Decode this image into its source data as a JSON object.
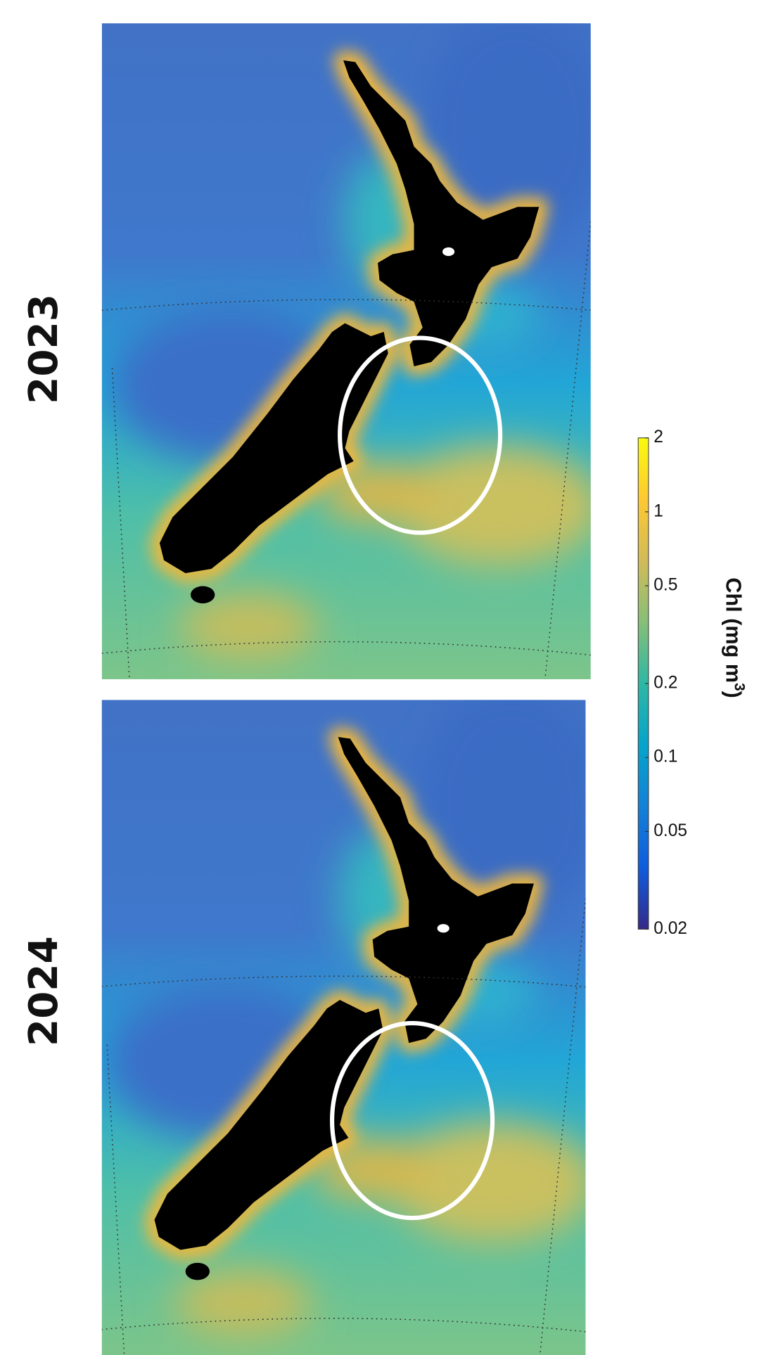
{
  "panels": [
    {
      "label": "2023"
    },
    {
      "label": "2024"
    }
  ],
  "colorbar": {
    "label": "Chl (mg m",
    "label_superscript": "3",
    "label_end": ")",
    "scale": "log",
    "lim": [
      0.02,
      2
    ],
    "ticks": [
      2,
      1,
      0.5,
      0.2,
      0.1,
      0.05,
      0.02
    ],
    "colors": [
      "#352a87",
      "#0f5cdd",
      "#1481d6",
      "#06a4ca",
      "#2eb7a4",
      "#87bf77",
      "#d1bb59",
      "#fec832",
      "#f9fb0e"
    ]
  }
}
